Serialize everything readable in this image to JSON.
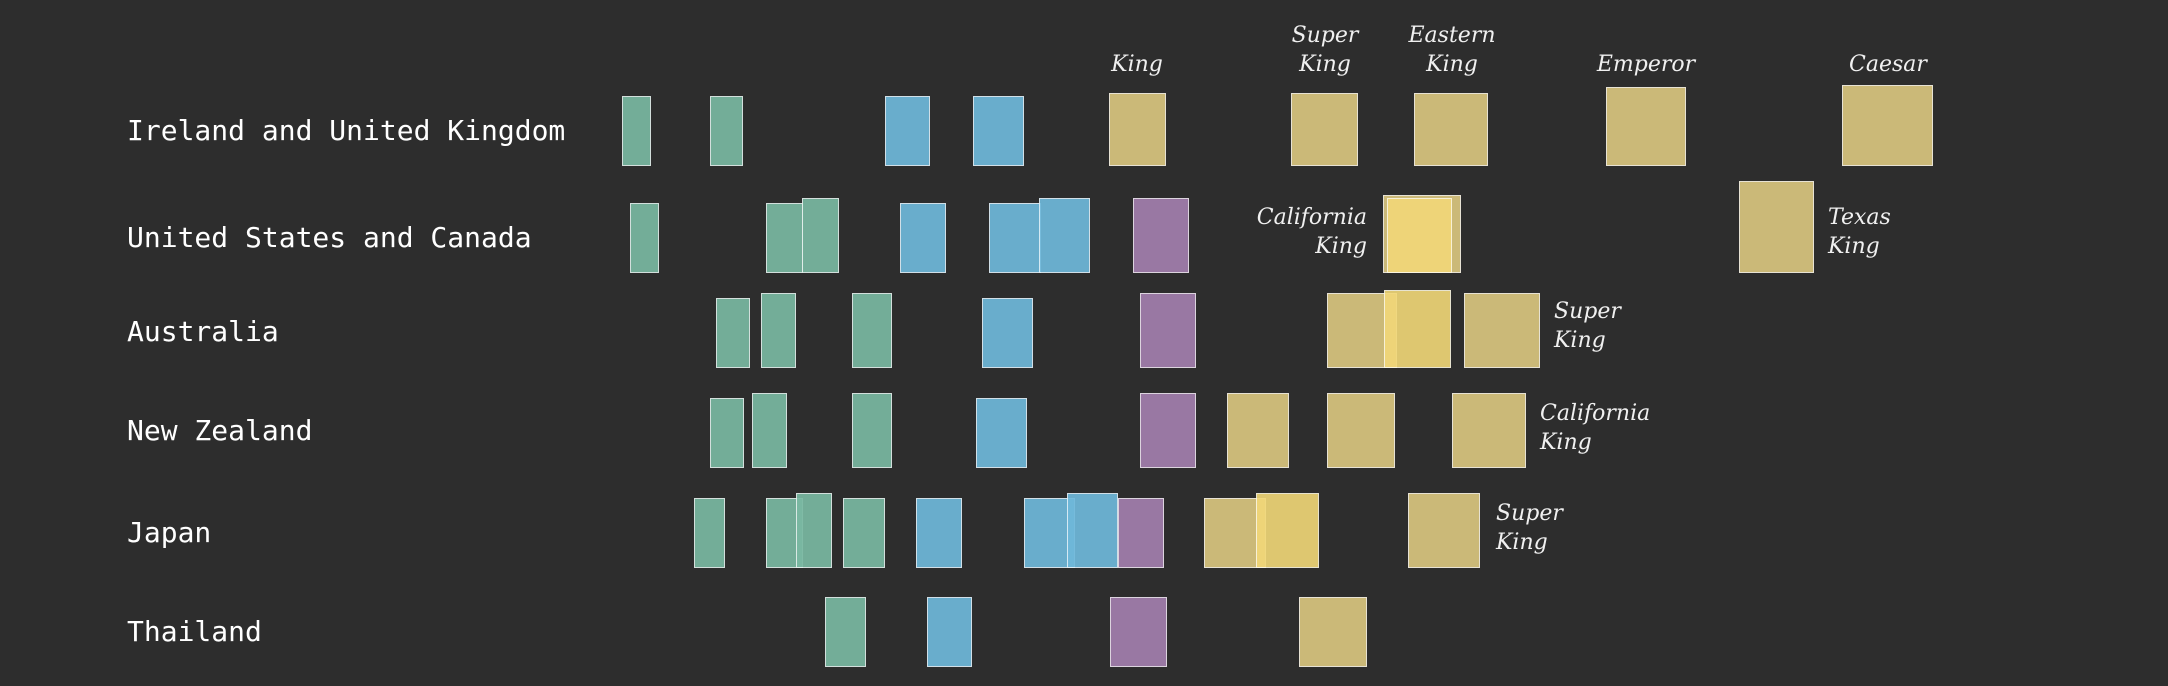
{
  "colors": {
    "background": "#2d2d2d",
    "teal": "#7ab8a2",
    "blue": "#6fb8da",
    "purple": "#a37fae",
    "gold": "#d9c57f",
    "gold_highlight": "#f2d878"
  },
  "rows": [
    {
      "name": "Ireland and United Kingdom"
    },
    {
      "name": "United States and Canada"
    },
    {
      "name": "Australia"
    },
    {
      "name": "New Zealand"
    },
    {
      "name": "Japan"
    },
    {
      "name": "Thailand"
    }
  ],
  "labels": {
    "uk_king": [
      "King"
    ],
    "uk_super_king": [
      "Super",
      "King"
    ],
    "uk_eastern_king": [
      "Eastern",
      "King"
    ],
    "uk_emperor": [
      "Emperor"
    ],
    "uk_caesar": [
      "Caesar"
    ],
    "us_california_king": [
      "California",
      "King"
    ],
    "us_texas_king": [
      "Texas",
      "King"
    ],
    "au_super_king": [
      "Super",
      "King"
    ],
    "nz_california_king": [
      "California",
      "King"
    ],
    "jp_super_king": [
      "Super",
      "King"
    ]
  }
}
